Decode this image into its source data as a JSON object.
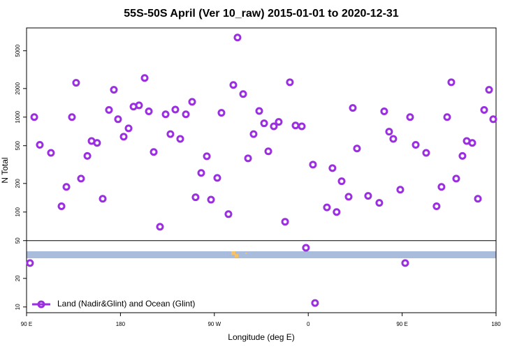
{
  "chart_data": {
    "type": "scatter",
    "title": "55S-50S April (Ver 10_raw)   2015-01-01 to 2020-12-31",
    "x_label": "Longitude (deg E)",
    "y_label": "N Total",
    "yscale": "log",
    "xlim": [
      90,
      540
    ],
    "ylim": [
      8.7,
      8700
    ],
    "xticks": [
      {
        "value": 90,
        "label": "90 E"
      },
      180,
      {
        "value": 270,
        "label": "90 W"
      },
      {
        "value": 360,
        "label": "0"
      },
      {
        "value": 450,
        "label": "90 E"
      },
      {
        "value": 540,
        "label": "180"
      }
    ],
    "yticks": [
      10,
      20,
      50,
      100,
      200,
      500,
      1000,
      2000,
      5000
    ],
    "hline": 50,
    "legend": "bottom-left",
    "series": [
      {
        "name": "Land (Nadir&Glint) and Ocean (Glint)",
        "color": "#9a2ee0",
        "x": [
          93.3,
          97.4,
          102.7,
          113.4,
          123.5,
          128.2,
          133.5,
          137.5,
          142.2,
          148.3,
          152.3,
          157.6,
          163,
          169,
          173.7,
          177.7,
          183.1,
          187.8,
          192.5,
          197.8,
          203.2,
          207.2,
          211.9,
          217.9,
          223.3,
          227.9,
          232.6,
          237.3,
          242.7,
          248.7,
          252,
          257.4,
          262.8,
          266.8,
          272.8,
          276.8,
          283.5,
          288.2,
          292.2,
          297.6,
          302.3,
          307.6,
          313,
          317.7,
          321.7,
          327,
          331.7,
          337.8,
          342.4,
          347.8,
          353.8,
          357.8,
          364.5,
          366.5,
          377.9,
          383.2,
          387.2,
          392,
          398.7,
          402.7,
          406.7,
          417.4,
          428.1,
          432.8,
          437.5,
          441.5,
          448.2,
          452.9,
          457.6,
          463,
          473,
          483,
          487.7,
          493.1,
          497.1,
          501.8,
          507.8,
          511.9,
          517.2,
          522.6,
          528.6,
          533.3,
          537.3
        ],
        "values": [
          29,
          1000,
          510,
          420,
          115,
          184,
          1000,
          2300,
          225,
          390,
          560,
          535,
          138,
          1190,
          1940,
          950,
          622,
          762,
          1290,
          1330,
          2580,
          1150,
          429,
          70,
          1070,
          662,
          1200,
          590,
          1070,
          1450,
          143,
          258,
          387,
          135,
          229,
          1110,
          95,
          2180,
          6890,
          1750,
          368,
          662,
          1160,
          860,
          436,
          800,
          890,
          79,
          2330,
          816,
          800,
          42,
          316,
          11,
          112,
          290,
          100,
          211,
          145,
          1250,
          467,
          148,
          125,
          1150,
          702,
          590,
          172,
          29,
          1000,
          510,
          420,
          115,
          184,
          1000,
          2330,
          225,
          390,
          560,
          535,
          138,
          1190,
          1940,
          950
        ]
      }
    ]
  }
}
